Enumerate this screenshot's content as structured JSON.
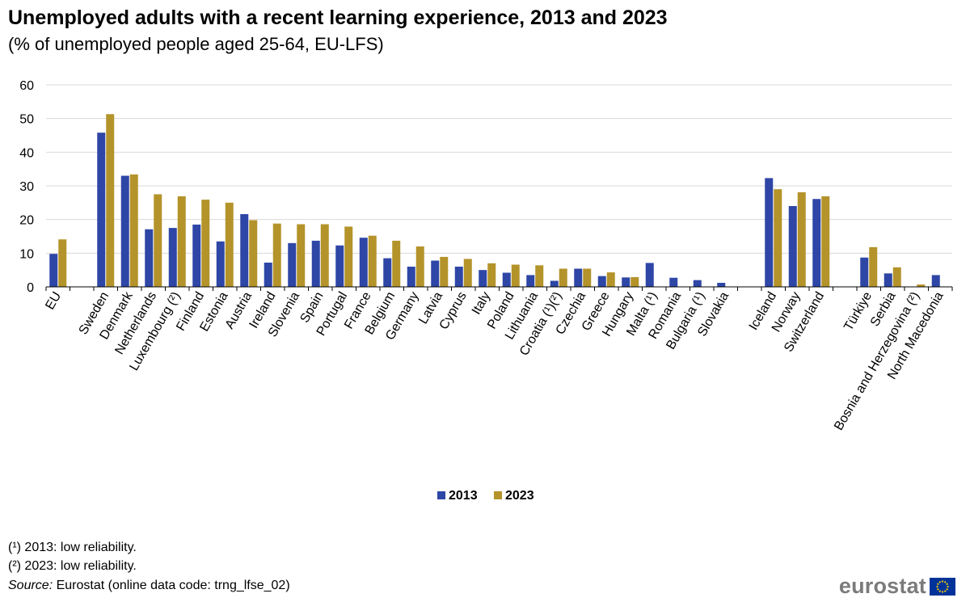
{
  "title": "Unemployed adults with a recent learning experience, 2013 and 2023",
  "subtitle": "(% of unemployed people aged 25-64, EU-LFS)",
  "footnotes": [
    "(¹) 2013: low reliability.",
    "(²) 2023: low reliability."
  ],
  "source": {
    "label": "Source:",
    "text": " Eurostat (online data code: trng_lfse_02)"
  },
  "logo": {
    "text": "eurostat",
    "flag_color": "#003399",
    "star_color": "#ffcc00"
  },
  "colors": {
    "s2013": "#2e46a6",
    "s2023": "#b4932a",
    "grid": "#d9d9d9",
    "axis": "#000000"
  },
  "chart_data": {
    "type": "bar",
    "ylim": [
      0,
      60
    ],
    "yticks": [
      0,
      10,
      20,
      30,
      40,
      50,
      60
    ],
    "grid": true,
    "legend_position": "bottom-center",
    "categories": [
      "EU",
      "",
      "Sweden",
      "Denmark",
      "Netherlands",
      "Luxembourg (²)",
      "Finland",
      "Estonia",
      "Austria",
      "Ireland",
      "Slovenia",
      "Spain",
      "Portugal",
      "France",
      "Belgium",
      "Germany",
      "Latvia",
      "Cyprus",
      "Italy",
      "Poland",
      "Lithuania",
      "Croatia (¹)(²)",
      "Czechia",
      "Greece",
      "Hungary",
      "Malta (¹)",
      "Romania",
      "Bulgaria (¹)",
      "Slovakia",
      "",
      "Iceland",
      "Norway",
      "Switzerland",
      "",
      "Türkiye",
      "Serbia",
      "Bosnia and Herzegovina (²)",
      "North Macedonia"
    ],
    "series": [
      {
        "name": "2013",
        "values": [
          9.8,
          null,
          45.8,
          33.0,
          17.1,
          17.5,
          18.5,
          13.5,
          21.6,
          7.2,
          13.0,
          13.7,
          12.3,
          14.6,
          8.5,
          6.0,
          7.8,
          6.0,
          5.0,
          4.2,
          3.5,
          1.8,
          5.4,
          3.2,
          2.8,
          7.1,
          2.7,
          2.0,
          1.2,
          null,
          32.3,
          24.0,
          26.1,
          null,
          8.7,
          4.0,
          null,
          3.5
        ]
      },
      {
        "name": "2023",
        "values": [
          14.1,
          null,
          51.3,
          33.4,
          27.5,
          26.9,
          25.9,
          25.0,
          19.8,
          18.8,
          18.6,
          18.6,
          17.9,
          15.2,
          13.7,
          12.0,
          8.9,
          8.3,
          7.0,
          6.6,
          6.4,
          5.4,
          5.4,
          4.3,
          2.9,
          null,
          null,
          null,
          null,
          null,
          29.0,
          28.1,
          26.9,
          null,
          11.8,
          5.8,
          0.7,
          null
        ]
      }
    ]
  }
}
